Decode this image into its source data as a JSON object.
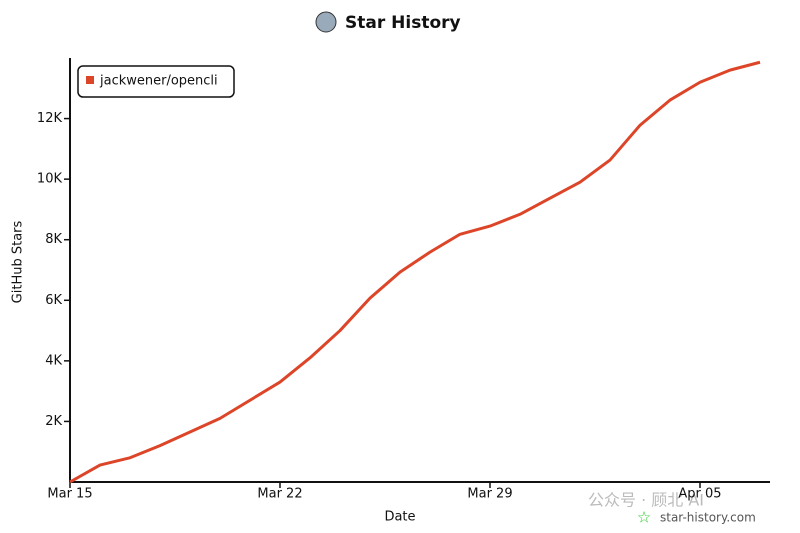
{
  "chart_data": {
    "type": "line",
    "title": "Star History",
    "x_label": "Date",
    "y_label": "GitHub Stars",
    "x": [
      "Mar 15",
      "Mar 16",
      "Mar 17",
      "Mar 18",
      "Mar 19",
      "Mar 20",
      "Mar 21",
      "Mar 22",
      "Mar 23",
      "Mar 24",
      "Mar 25",
      "Mar 26",
      "Mar 27",
      "Mar 28",
      "Mar 29",
      "Mar 30",
      "Mar 31",
      "Apr 01",
      "Apr 02",
      "Apr 03",
      "Apr 04",
      "Apr 05",
      "Apr 06",
      "Apr 07"
    ],
    "series": [
      {
        "name": "jackwener/opencli",
        "color": "#dd4528",
        "values": [
          0,
          560,
          800,
          1200,
          1650,
          2100,
          2700,
          3300,
          4100,
          5000,
          6070,
          6930,
          7590,
          8180,
          8450,
          8840,
          9370,
          9900,
          10630,
          11780,
          12610,
          13200,
          13600,
          13860
        ]
      }
    ],
    "ylim": [
      0,
      14000
    ],
    "yticks": [
      {
        "value": 2000,
        "label": "2K"
      },
      {
        "value": 4000,
        "label": "4K"
      },
      {
        "value": 6000,
        "label": "6K"
      },
      {
        "value": 8000,
        "label": "8K"
      },
      {
        "value": 10000,
        "label": "10K"
      },
      {
        "value": 12000,
        "label": "12K"
      }
    ],
    "xticks": [
      "Mar 15",
      "Mar 22",
      "Mar 29",
      "Apr 05"
    ],
    "legend": "top-left",
    "watermarks": [
      "star-history.com",
      "公众号 · 顾北 AI"
    ]
  }
}
